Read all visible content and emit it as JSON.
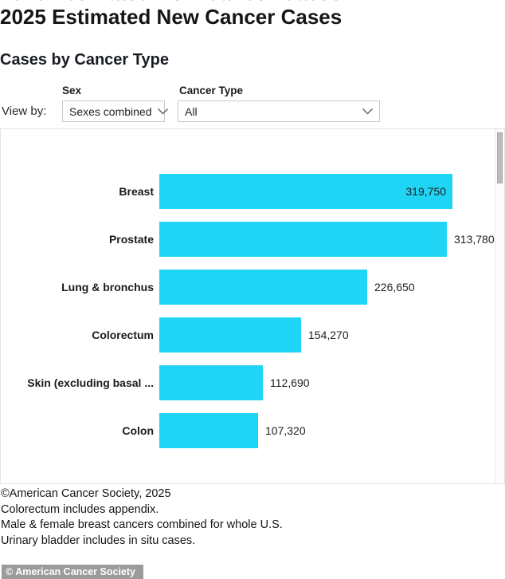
{
  "page": {
    "title": "2025 Estimated New Cancer Cases",
    "subtitle": "Cases by Cancer Type"
  },
  "controls": {
    "view_by_label": "View by:",
    "sex": {
      "label": "Sex",
      "selected": "Sexes combined"
    },
    "cancer_type": {
      "label": "Cancer Type",
      "selected": "All"
    }
  },
  "chart_data": {
    "type": "bar",
    "orientation": "horizontal",
    "title": "Cases by Cancer Type",
    "xlabel": "",
    "ylabel": "",
    "xlim": [
      0,
      319750
    ],
    "grid": false,
    "legend": false,
    "bar_color": "#1fd4f4",
    "categories": [
      "Breast",
      "Prostate",
      "Lung & bronchus",
      "Colorectum",
      "Skin (excluding basal ...",
      "Colon"
    ],
    "values": [
      319750,
      313780,
      226650,
      154270,
      112690,
      107320
    ],
    "values_formatted": [
      "319,750",
      "313,780",
      "226,650",
      "154,270",
      "112,690",
      "107,320"
    ],
    "value_label_inside": [
      true,
      false,
      false,
      false,
      false,
      false
    ]
  },
  "footnotes": [
    "©American Cancer Society, 2025",
    "Colorectum includes appendix.",
    "Male & female breast cancers combined for whole U.S.",
    "Urinary bladder includes in situ cases."
  ],
  "badge": {
    "text": "© American Cancer Society"
  }
}
